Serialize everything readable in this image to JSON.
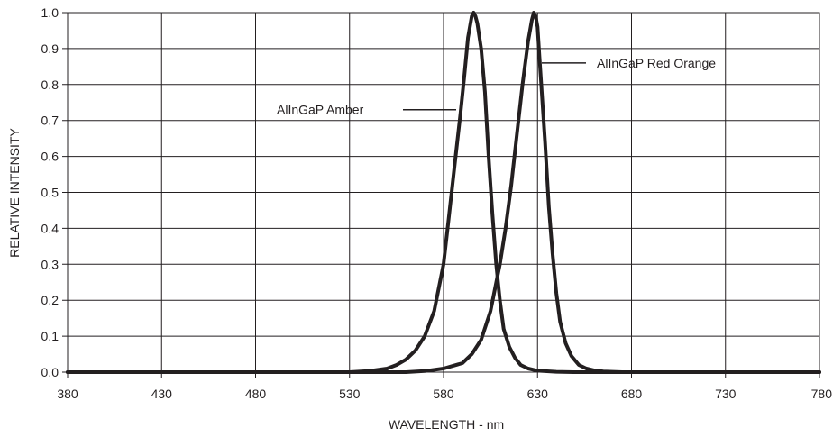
{
  "chart_data": {
    "type": "line",
    "title": "",
    "xlabel": "WAVELENGTH - nm",
    "ylabel": "RELATIVE INTENSITY",
    "xlim": [
      380,
      780
    ],
    "ylim": [
      0,
      1.0
    ],
    "x_ticks": [
      "380",
      "430",
      "480",
      "530",
      "580",
      "630",
      "680",
      "730",
      "780"
    ],
    "y_ticks": [
      "0.0",
      "0.1",
      "0.2",
      "0.3",
      "0.4",
      "0.5",
      "0.6",
      "0.7",
      "0.8",
      "0.9",
      "1.0"
    ],
    "grid": true,
    "line_color": "#231f20",
    "series": [
      {
        "name": "AlInGaP Amber",
        "x": [
          380,
          530,
          540,
          550,
          555,
          560,
          565,
          570,
          575,
          580,
          583,
          586,
          589,
          591,
          593,
          595,
          596,
          597,
          598,
          600,
          602,
          604,
          606,
          608,
          610,
          612,
          615,
          618,
          621,
          625,
          630,
          640,
          650,
          780
        ],
        "y": [
          0,
          0,
          0.003,
          0.01,
          0.02,
          0.035,
          0.06,
          0.1,
          0.17,
          0.3,
          0.44,
          0.58,
          0.72,
          0.82,
          0.93,
          0.99,
          1.0,
          0.99,
          0.97,
          0.9,
          0.78,
          0.6,
          0.44,
          0.3,
          0.2,
          0.12,
          0.07,
          0.04,
          0.02,
          0.01,
          0.004,
          0.001,
          0,
          0
        ]
      },
      {
        "name": "AlInGaP Red Orange",
        "x": [
          380,
          560,
          570,
          580,
          590,
          595,
          600,
          605,
          610,
          613,
          616,
          619,
          622,
          625,
          627,
          628,
          629,
          630,
          631,
          632,
          634,
          636,
          638,
          640,
          642,
          645,
          648,
          652,
          656,
          660,
          665,
          670,
          675,
          780
        ],
        "y": [
          0,
          0,
          0.003,
          0.01,
          0.025,
          0.05,
          0.09,
          0.17,
          0.3,
          0.4,
          0.52,
          0.66,
          0.8,
          0.92,
          0.98,
          1.0,
          0.99,
          0.96,
          0.88,
          0.8,
          0.64,
          0.46,
          0.33,
          0.22,
          0.14,
          0.08,
          0.045,
          0.02,
          0.01,
          0.005,
          0.002,
          0.001,
          0,
          0
        ]
      }
    ],
    "annotations": [
      {
        "text": "AlInGaP Amber",
        "series": 0
      },
      {
        "text": "AlInGaP Red Orange",
        "series": 1
      }
    ]
  }
}
